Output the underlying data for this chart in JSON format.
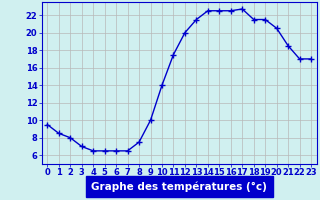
{
  "x": [
    0,
    1,
    2,
    3,
    4,
    5,
    6,
    7,
    8,
    9,
    10,
    11,
    12,
    13,
    14,
    15,
    16,
    17,
    18,
    19,
    20,
    21,
    22,
    23
  ],
  "y": [
    9.5,
    8.5,
    8.0,
    7.0,
    6.5,
    6.5,
    6.5,
    6.5,
    7.5,
    10.0,
    14.0,
    17.5,
    20.0,
    21.5,
    22.5,
    22.5,
    22.5,
    22.7,
    21.5,
    21.5,
    20.5,
    18.5,
    17.0,
    17.0
  ],
  "xlabel": "Graphe des températures (°c)",
  "xlim": [
    -0.5,
    23.5
  ],
  "ylim": [
    5,
    23.5
  ],
  "yticks": [
    6,
    8,
    10,
    12,
    14,
    16,
    18,
    20,
    22
  ],
  "xticks": [
    0,
    1,
    2,
    3,
    4,
    5,
    6,
    7,
    8,
    9,
    10,
    11,
    12,
    13,
    14,
    15,
    16,
    17,
    18,
    19,
    20,
    21,
    22,
    23
  ],
  "xtick_labels": [
    "0",
    "1",
    "2",
    "3",
    "4",
    "5",
    "6",
    "7",
    "8",
    "9",
    "10",
    "11",
    "12",
    "13",
    "14",
    "15",
    "16",
    "17",
    "18",
    "19",
    "20",
    "21",
    "22",
    "23"
  ],
  "line_color": "#0000cc",
  "marker": "+",
  "marker_size": 4,
  "bg_color": "#d0f0f0",
  "grid_color": "#b8b8b8",
  "axes_color": "#0000cc",
  "tick_label_color": "#0000cc",
  "xlabel_bg": "#0000cc",
  "xlabel_fg": "#ffffff",
  "xlabel_fontsize": 7.5,
  "tick_fontsize": 6.0
}
